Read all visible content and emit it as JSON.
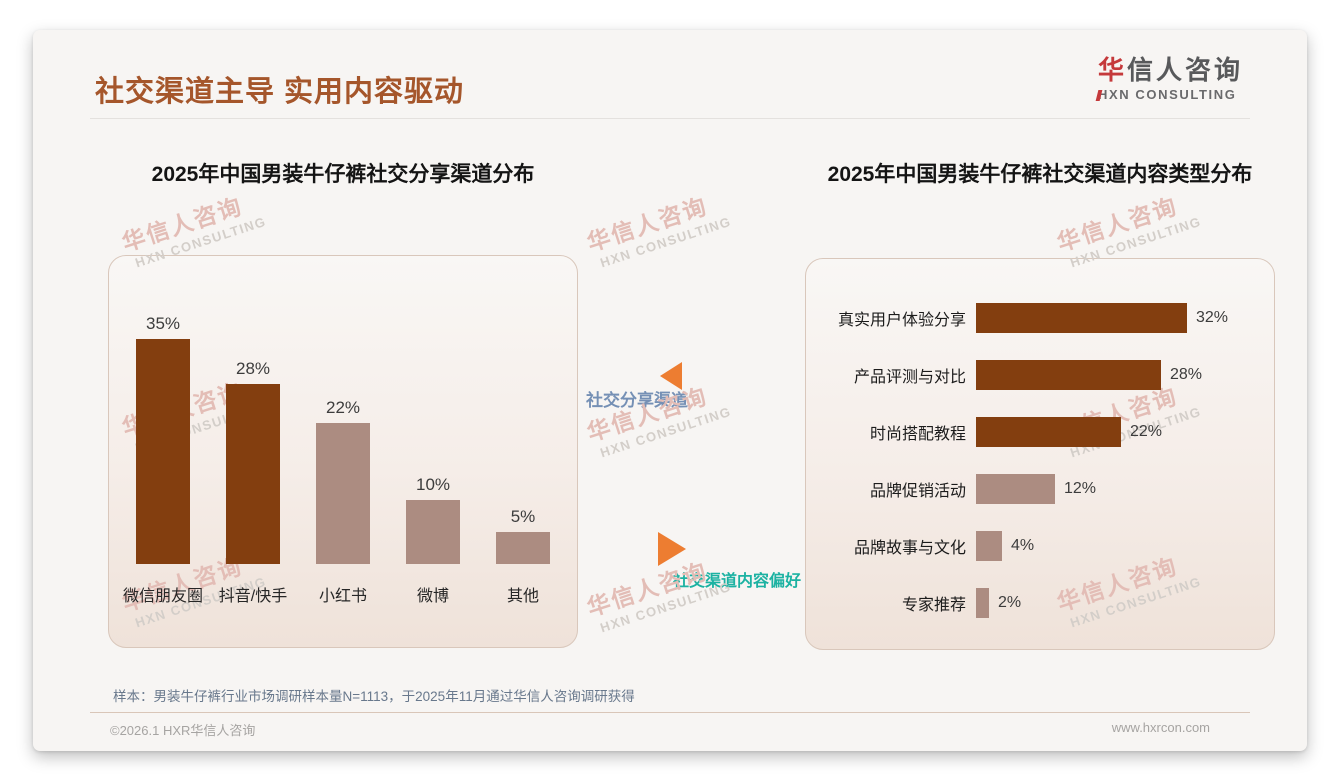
{
  "header": {
    "title": "社交渠道主导 实用内容驱动",
    "logo": {
      "cn_red": "华",
      "cn_gray": "信人咨询",
      "en": "HXN CONSULTING"
    }
  },
  "watermark": {
    "cn": "华信人咨询",
    "en": "HXN CONSULTING"
  },
  "annotations": {
    "left_arrow_label": "社交分享渠道",
    "right_arrow_label": "社交渠道内容偏好"
  },
  "chart_data": [
    {
      "type": "bar",
      "orientation": "vertical",
      "title": "2025年中国男装牛仔裤社交分享渠道分布",
      "categories": [
        "微信朋友圈",
        "抖音/快手",
        "小红书",
        "微博",
        "其他"
      ],
      "values": [
        35,
        28,
        22,
        10,
        5
      ],
      "value_labels": [
        "35%",
        "28%",
        "22%",
        "10%",
        "5%"
      ],
      "unit": "%",
      "ylim": [
        0,
        40
      ],
      "grid": false,
      "legend": null,
      "bar_colors": [
        "#833E0F",
        "#833E0F",
        "#AC8C81",
        "#AC8C81",
        "#AC8C81"
      ]
    },
    {
      "type": "bar",
      "orientation": "horizontal",
      "title": "2025年中国男装牛仔裤社交渠道内容类型分布",
      "categories": [
        "真实用户体验分享",
        "产品评测与对比",
        "时尚搭配教程",
        "品牌促销活动",
        "品牌故事与文化",
        "专家推荐"
      ],
      "values": [
        32,
        28,
        22,
        12,
        4,
        2
      ],
      "value_labels": [
        "32%",
        "28%",
        "22%",
        "12%",
        "4%",
        "2%"
      ],
      "unit": "%",
      "xlim": [
        0,
        35
      ],
      "grid": false,
      "legend": null,
      "bar_colors": [
        "#833E0F",
        "#833E0F",
        "#833E0F",
        "#AC8C81",
        "#AC8C81",
        "#AC8C81"
      ]
    }
  ],
  "footer": {
    "sample_note": "样本：男装牛仔裤行业市场调研样本量N=1113，于2025年11月通过华信人咨询调研获得",
    "copyright": "©2026.1 HXR华信人咨询",
    "website": "www.hxrcon.com"
  },
  "colors": {
    "accent_title": "#A5562B",
    "bar_dark": "#833E0F",
    "bar_light": "#AC8C81",
    "arrow_orange": "#ED7D31",
    "annotation_blue": "#7590B5",
    "annotation_teal": "#1CB2A2",
    "logo_red": "#C5393B",
    "watermark_pink": "#E3BDB6"
  }
}
